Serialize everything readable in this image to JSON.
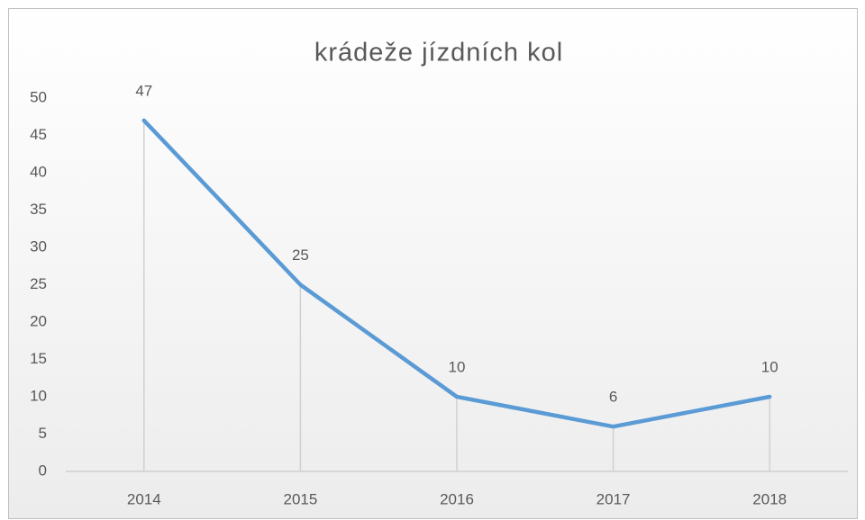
{
  "chart_data": {
    "type": "line",
    "title": "krádeže jízdních kol",
    "categories": [
      "2014",
      "2015",
      "2016",
      "2017",
      "2018"
    ],
    "values": [
      47,
      25,
      10,
      6,
      10
    ],
    "color": "#5b9bd5",
    "ylim": [
      0,
      50
    ],
    "yticks": [
      0,
      5,
      10,
      15,
      20,
      25,
      30,
      35,
      40,
      45,
      50
    ],
    "drop_lines": true
  }
}
